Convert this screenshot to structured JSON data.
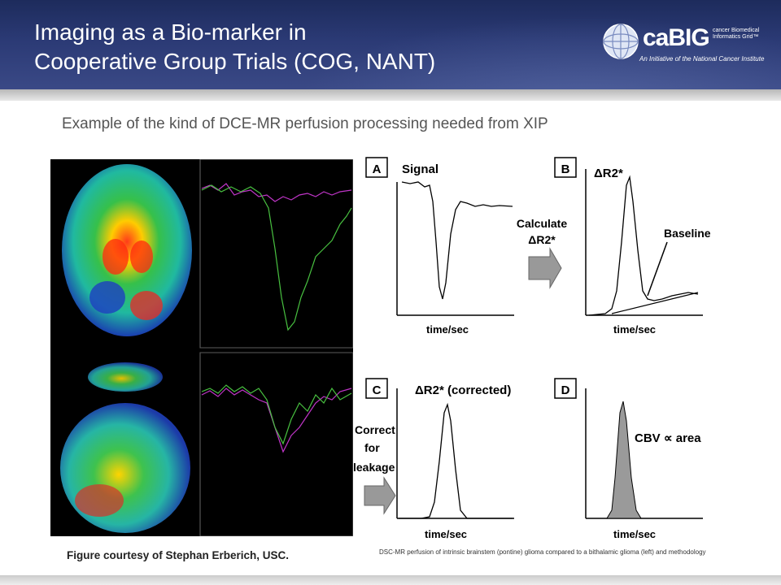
{
  "header": {
    "title_line1": "Imaging as a Bio-marker in",
    "title_line2": "Cooperative  Group Trials (COG, NANT)"
  },
  "logo": {
    "name": "caBIG",
    "sub_line1": "cancer Biomedical",
    "sub_line2": "Informatics Grid™",
    "tagline": "An Initiative of the National Cancer Institute"
  },
  "subtitle": "Example of the kind of DCE-MR perfusion processing needed from XIP",
  "panels": {
    "a": {
      "letter": "A",
      "label": "Signal",
      "xlabel": "time/sec"
    },
    "b": {
      "letter": "B",
      "label": "ΔR2*",
      "annotation": "Baseline",
      "xlabel": "time/sec"
    },
    "c": {
      "letter": "C",
      "label": "ΔR2* (corrected)",
      "xlabel": "time/sec"
    },
    "d": {
      "letter": "D",
      "label": "CBV ∝ area",
      "xlabel": "time/sec"
    }
  },
  "arrows": {
    "calculate_line1": "Calculate",
    "calculate_line2": "ΔR2*",
    "correct_line1": "Correct",
    "correct_line2": "for",
    "correct_line3": "leakage"
  },
  "credit": "Figure courtesy of Stephan Erberich, USC.",
  "caption": "DSC-MR perfusion of intrinsic brainstem (pontine) glioma compared to a bithalamic glioma (left) and methodology",
  "colors": {
    "header_bg": "#2b3a75",
    "title_text": "#ffffff",
    "subtitle_text": "#555555",
    "fill_gray": "#9a9a9a"
  }
}
